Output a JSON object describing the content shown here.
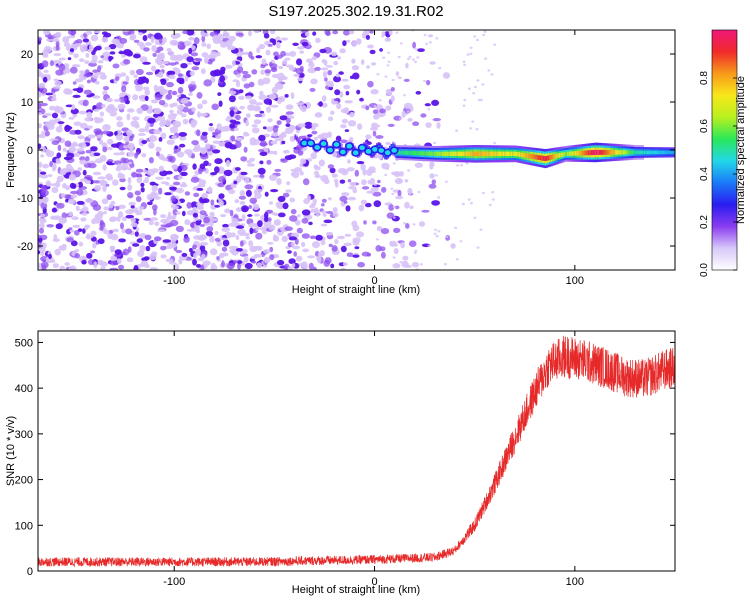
{
  "title": "S197.2025.302.19.31.R02",
  "colors": {
    "snr_line": "#e62a2a",
    "spectrogram_noise": "#6a1fe0",
    "spectrogram_noise_light": "#d7c2f7",
    "axis": "#000000",
    "colormap": [
      "#ffffff",
      "#d8c8f8",
      "#8a3cf0",
      "#2a1cf0",
      "#1a7af8",
      "#22d8e8",
      "#2ae85a",
      "#b8f020",
      "#f8e81a",
      "#f89a1a",
      "#f02a2a",
      "#f0187a"
    ]
  },
  "chart_data": [
    {
      "type": "heatmap",
      "name": "spectrogram",
      "xlabel": "Height of straight line (km)",
      "ylabel": "Frequency (Hz)",
      "xlim": [
        -168,
        150
      ],
      "ylim": [
        -25,
        25
      ],
      "xticks": [
        -100,
        0,
        100
      ],
      "xtick_labels": [
        "-100",
        "0",
        "100"
      ],
      "yticks": [
        -20,
        -10,
        0,
        10,
        20
      ],
      "ytick_labels": [
        "-20",
        "-10",
        "0",
        "10",
        "20"
      ],
      "colorbar": {
        "label": "Normalized spectral amplitude",
        "range": [
          0,
          1
        ],
        "ticks": [
          0,
          0.2,
          0.4,
          0.6,
          0.8
        ],
        "tick_labels": [
          "0.0",
          "0.2",
          "0.4",
          "0.6",
          "0.8"
        ]
      },
      "signal_track": [
        {
          "x": -40,
          "freq": 2,
          "amp": 0.2
        },
        {
          "x": -30,
          "freq": 1,
          "amp": 0.25
        },
        {
          "x": -20,
          "freq": 0.5,
          "amp": 0.25
        },
        {
          "x": -10,
          "freq": 0,
          "amp": 0.3
        },
        {
          "x": 0,
          "freq": 0,
          "amp": 0.35
        },
        {
          "x": 10,
          "freq": -0.5,
          "amp": 0.5
        },
        {
          "x": 30,
          "freq": -0.8,
          "amp": 0.6
        },
        {
          "x": 50,
          "freq": -0.8,
          "amp": 0.8
        },
        {
          "x": 70,
          "freq": -0.8,
          "amp": 0.7
        },
        {
          "x": 85,
          "freq": -1.8,
          "amp": 0.95
        },
        {
          "x": 95,
          "freq": -0.8,
          "amp": 0.6
        },
        {
          "x": 110,
          "freq": -0.5,
          "amp": 1.0
        },
        {
          "x": 130,
          "freq": -0.5,
          "amp": 0.5
        },
        {
          "x": 150,
          "freq": -0.5,
          "amp": 0.4
        }
      ]
    },
    {
      "type": "line",
      "name": "snr",
      "xlabel": "Height of straight line (km)",
      "ylabel": "SNR (10 * v/v)",
      "xlim": [
        -168,
        150
      ],
      "ylim": [
        0,
        525
      ],
      "xticks": [
        -100,
        0,
        100
      ],
      "xtick_labels": [
        "-100",
        "0",
        "100"
      ],
      "yticks": [
        0,
        100,
        200,
        300,
        400,
        500
      ],
      "ytick_labels": [
        "0",
        "100",
        "200",
        "300",
        "400",
        "500"
      ],
      "trend": [
        {
          "x": -168,
          "y": 20
        },
        {
          "x": -60,
          "y": 20
        },
        {
          "x": 0,
          "y": 25
        },
        {
          "x": 30,
          "y": 30
        },
        {
          "x": 40,
          "y": 45
        },
        {
          "x": 50,
          "y": 100
        },
        {
          "x": 60,
          "y": 190
        },
        {
          "x": 70,
          "y": 290
        },
        {
          "x": 80,
          "y": 390
        },
        {
          "x": 87,
          "y": 450
        },
        {
          "x": 95,
          "y": 470
        },
        {
          "x": 105,
          "y": 460
        },
        {
          "x": 115,
          "y": 445
        },
        {
          "x": 125,
          "y": 425
        },
        {
          "x": 135,
          "y": 420
        },
        {
          "x": 145,
          "y": 440
        },
        {
          "x": 150,
          "y": 445
        }
      ]
    }
  ]
}
